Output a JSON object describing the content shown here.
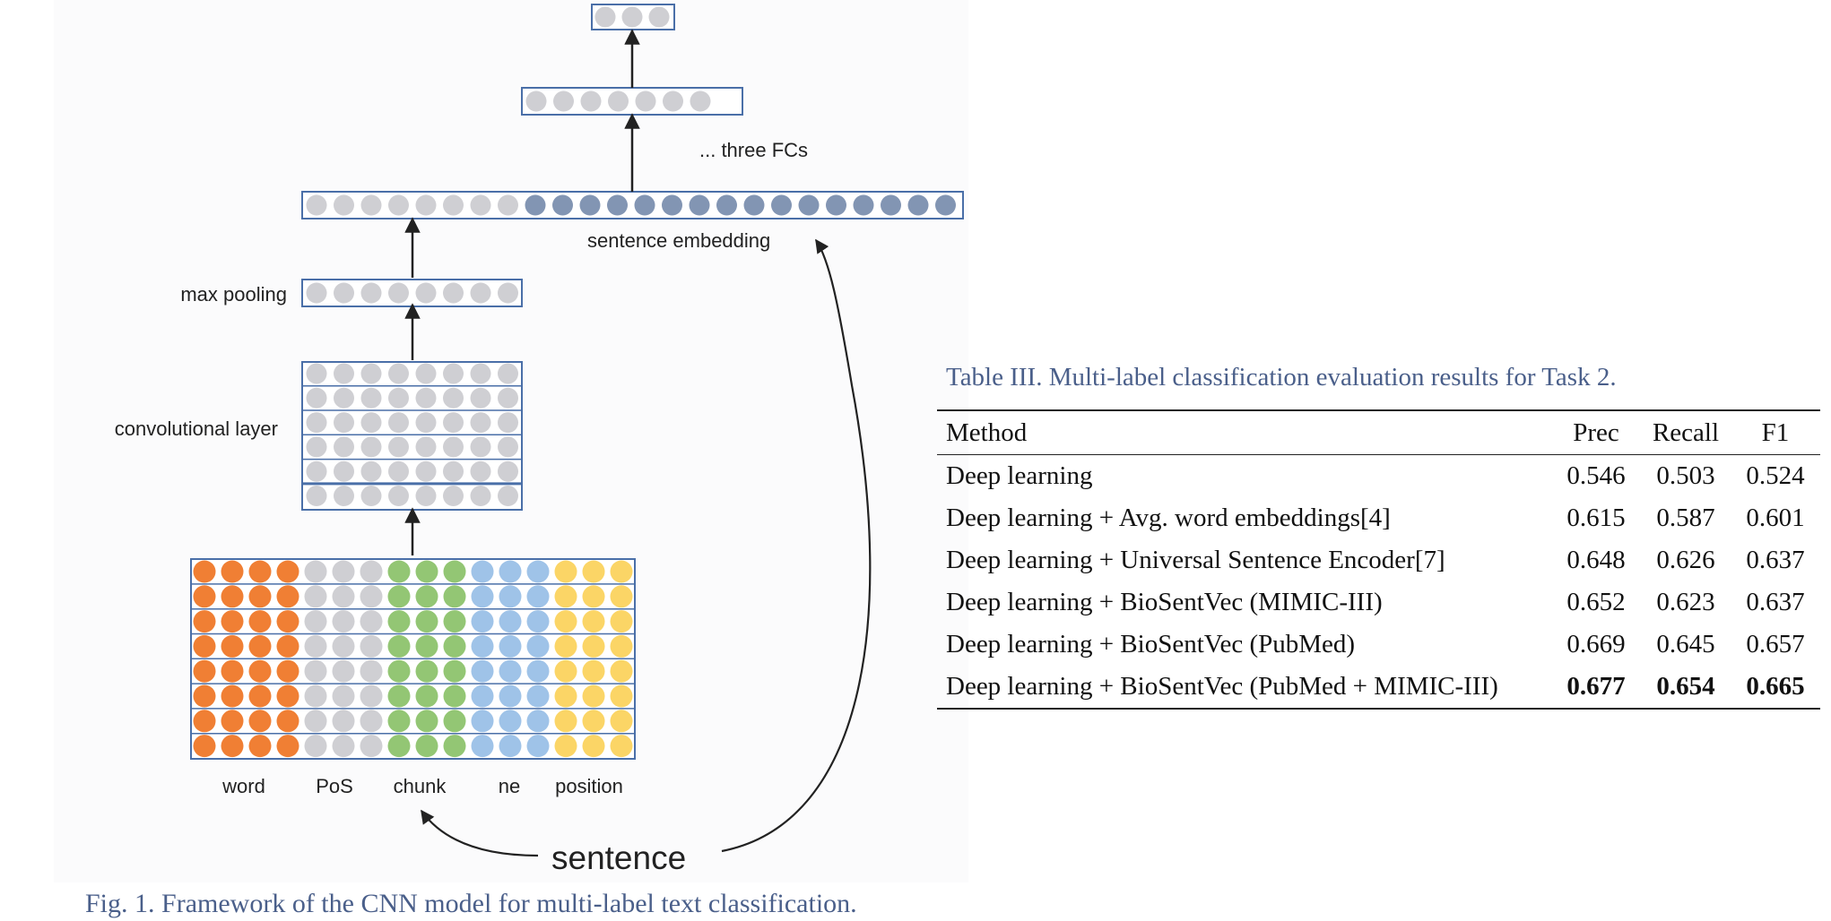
{
  "figure": {
    "labels": {
      "three_fcs": "... three FCs",
      "sentence_embedding": "sentence embedding",
      "max_pooling": "max pooling",
      "conv_layer": "convolutional layer",
      "word": "word",
      "pos": "PoS",
      "chunk": "chunk",
      "ne": "ne",
      "position": "position",
      "sentence": "sentence"
    },
    "colors": {
      "gray": "#cfcfd3",
      "steel_blue": "#8295b3",
      "orange": "#f07f34",
      "green": "#93c674",
      "light_blue": "#9fc3e8",
      "yellow": "#fbd566",
      "box_border": "#4a6fa8",
      "arrow": "#222222"
    },
    "caption": "Fig. 1. Framework of the CNN model for multi-label text classification."
  },
  "table": {
    "caption": "Table III. Multi-label classification evaluation results for Task 2.",
    "headers": [
      "Method",
      "Prec",
      "Recall",
      "F1"
    ],
    "rows": [
      {
        "method": "Deep learning",
        "prec": "0.546",
        "recall": "0.503",
        "f1": "0.524"
      },
      {
        "method": "Deep learning + Avg. word embeddings[4]",
        "prec": "0.615",
        "recall": "0.587",
        "f1": "0.601"
      },
      {
        "method": "Deep learning + Universal Sentence Encoder[7]",
        "prec": "0.648",
        "recall": "0.626",
        "f1": "0.637"
      },
      {
        "method": "Deep learning + BioSentVec (MIMIC-III)",
        "prec": "0.652",
        "recall": "0.623",
        "f1": "0.637"
      },
      {
        "method": "Deep learning + BioSentVec (PubMed)",
        "prec": "0.669",
        "recall": "0.645",
        "f1": "0.657"
      },
      {
        "method": "Deep learning + BioSentVec (PubMed + MIMIC-III)",
        "prec": "0.677",
        "recall": "0.654",
        "f1": "0.665"
      }
    ]
  }
}
